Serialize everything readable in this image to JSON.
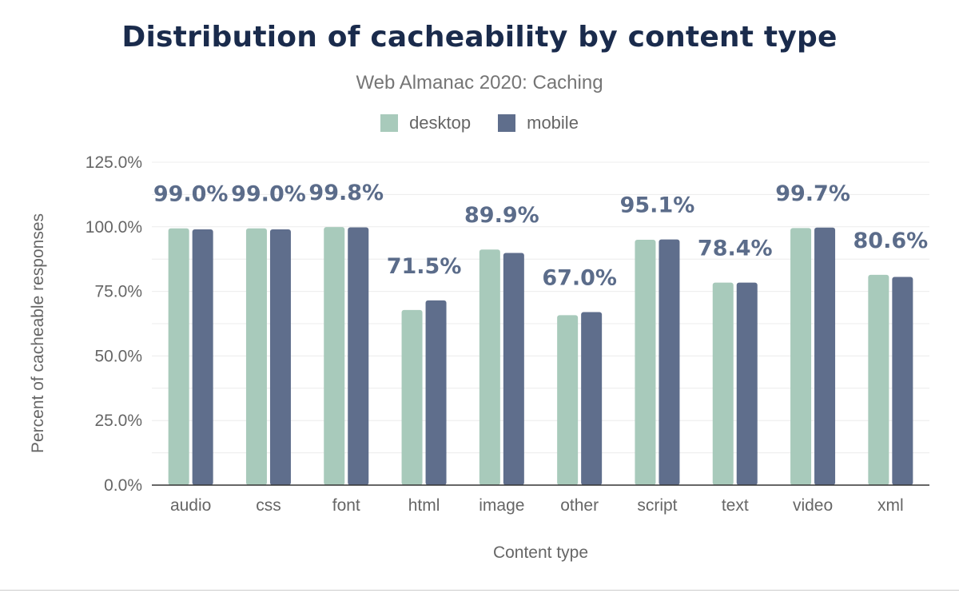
{
  "chart_data": {
    "type": "bar",
    "title": "Distribution of cacheability by content type",
    "subtitle": "Web Almanac 2020: Caching",
    "xlabel": "Content type",
    "ylabel": "Percent of cacheable responses",
    "categories": [
      "audio",
      "css",
      "font",
      "html",
      "image",
      "other",
      "script",
      "text",
      "video",
      "xml"
    ],
    "series": [
      {
        "name": "desktop",
        "color": "#a8cabb",
        "values": [
          99.4,
          99.4,
          99.9,
          67.8,
          91.2,
          65.8,
          95.0,
          78.4,
          99.5,
          81.4
        ]
      },
      {
        "name": "mobile",
        "color": "#5f6e8c",
        "values": [
          99.0,
          99.0,
          99.8,
          71.5,
          89.9,
          67.0,
          95.1,
          78.4,
          99.7,
          80.6
        ]
      }
    ],
    "data_labels": [
      "99.0%",
      "99.0%",
      "99.8%",
      "71.5%",
      "89.9%",
      "67.0%",
      "95.1%",
      "78.4%",
      "99.7%",
      "80.6%"
    ],
    "ylim": [
      0,
      125
    ],
    "yticks": [
      0,
      25,
      50,
      75,
      100,
      125
    ],
    "ytick_labels": [
      "0.0%",
      "25.0%",
      "50.0%",
      "75.0%",
      "100.0%",
      "125.0%"
    ],
    "grid": true,
    "legend_position": "top-center"
  }
}
